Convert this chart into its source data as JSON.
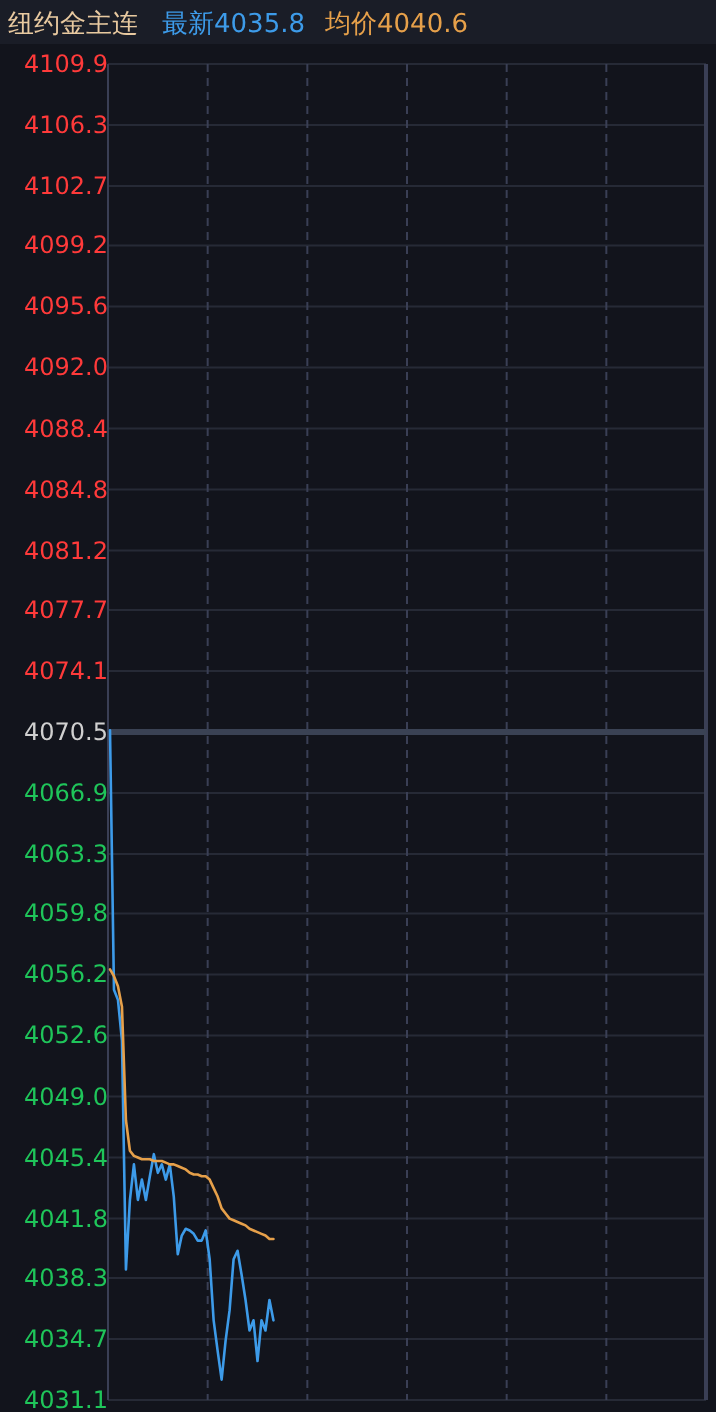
{
  "chart_data": {
    "type": "line",
    "title": "纽约金主连",
    "legend": "top",
    "categories": [
      null,
      null,
      null,
      null,
      null,
      null,
      null,
      null,
      null,
      null,
      null,
      null,
      null,
      null,
      null,
      null,
      null,
      null,
      null,
      null,
      null,
      null,
      null,
      null,
      null,
      null,
      null,
      null,
      null,
      null,
      null,
      null,
      null,
      null,
      null,
      null,
      null,
      null,
      null,
      null,
      null,
      null,
      null,
      null,
      null,
      null,
      null,
      null,
      null,
      null,
      null,
      null,
      null,
      null,
      null,
      null,
      null,
      null,
      null,
      null,
      null,
      null,
      null,
      null,
      null,
      null,
      null,
      null,
      null,
      null,
      null,
      null,
      null,
      null,
      null,
      null,
      null,
      null,
      null,
      null,
      null,
      null,
      null,
      null,
      null,
      null,
      null,
      null,
      null,
      null,
      null,
      null,
      null,
      null,
      null,
      null,
      null,
      null,
      null,
      null,
      null,
      null,
      null,
      null,
      null,
      null,
      null,
      null,
      null,
      null,
      null,
      null,
      null,
      null,
      null,
      null,
      null,
      null,
      null,
      null,
      null,
      null,
      null,
      null,
      null,
      null,
      null,
      null,
      null,
      null,
      null,
      null,
      null,
      null,
      null,
      null,
      null,
      null,
      null,
      null,
      null,
      null,
      null,
      null,
      null,
      null,
      null,
      null,
      null,
      null
    ],
    "series": [
      {
        "name": "最新4035.8",
        "color": "#3d9be9",
        "values": [
          4070.6,
          4055.3,
          4054.7,
          4052.3,
          4038.8,
          4042.9,
          4045.0,
          4042.9,
          4044.1,
          4042.9,
          4044.3,
          4045.6,
          4044.5,
          4045.0,
          4044.1,
          4045.0,
          4043.1,
          4039.7,
          4040.8,
          4041.2,
          4041.1,
          4040.9,
          4040.5,
          4040.5,
          4041.1,
          4039.4,
          4035.8,
          4034.0,
          4032.3,
          4034.6,
          4036.4,
          4039.4,
          4039.9,
          4038.5,
          4037.0,
          4035.2,
          4035.8,
          4033.4,
          4035.8,
          4035.2,
          4037.0,
          4035.8,
          null,
          null,
          null,
          null,
          null,
          null,
          null,
          null,
          null,
          null,
          null,
          null,
          null,
          null,
          null,
          null,
          null,
          null,
          null,
          null,
          null,
          null,
          null,
          null,
          null,
          null,
          null,
          null,
          null,
          null,
          null,
          null,
          null,
          null,
          null,
          null,
          null,
          null,
          null,
          null,
          null,
          null,
          null,
          null,
          null,
          null,
          null,
          null,
          null,
          null,
          null,
          null,
          null,
          null,
          null,
          null,
          null,
          null,
          null,
          null,
          null,
          null,
          null,
          null,
          null,
          null,
          null,
          null,
          null,
          null,
          null,
          null,
          null,
          null,
          null,
          null,
          null,
          null,
          null,
          null,
          null,
          null,
          null,
          null,
          null,
          null,
          null,
          null,
          null,
          null,
          null,
          null,
          null,
          null,
          null,
          null,
          null,
          null,
          null,
          null,
          null,
          null,
          null,
          null,
          null,
          null,
          null,
          null
        ]
      },
      {
        "name": "均价4040.6",
        "color": "#e6a04a",
        "values": [
          4056.5,
          4056.1,
          4055.5,
          4054.3,
          4047.6,
          4045.8,
          4045.5,
          4045.4,
          4045.3,
          4045.3,
          4045.3,
          4045.2,
          4045.2,
          4045.2,
          4045.1,
          4045.0,
          4045.0,
          4044.9,
          4044.8,
          4044.7,
          4044.5,
          4044.4,
          4044.4,
          4044.3,
          4044.3,
          4044.1,
          4043.6,
          4043.1,
          4042.4,
          4042.1,
          4041.8,
          4041.7,
          4041.6,
          4041.5,
          4041.4,
          4041.2,
          4041.1,
          4041.0,
          4040.9,
          4040.8,
          4040.6,
          4040.6,
          null,
          null,
          null,
          null,
          null,
          null,
          null,
          null,
          null,
          null,
          null,
          null,
          null,
          null,
          null,
          null,
          null,
          null,
          null,
          null,
          null,
          null,
          null,
          null,
          null,
          null,
          null,
          null,
          null,
          null,
          null,
          null,
          null,
          null,
          null,
          null,
          null,
          null,
          null,
          null,
          null,
          null,
          null,
          null,
          null,
          null,
          null,
          null,
          null,
          null,
          null,
          null,
          null,
          null,
          null,
          null,
          null,
          null,
          null,
          null,
          null,
          null,
          null,
          null,
          null,
          null,
          null,
          null,
          null,
          null,
          null,
          null,
          null,
          null,
          null,
          null,
          null,
          null,
          null,
          null,
          null,
          null,
          null,
          null,
          null,
          null,
          null,
          null,
          null,
          null,
          null,
          null,
          null,
          null,
          null,
          null,
          null,
          null,
          null,
          null,
          null,
          null,
          null,
          null,
          null,
          null,
          null,
          null
        ]
      }
    ],
    "ylim": [
      4031.1,
      4109.9
    ],
    "yticks": [
      4109.9,
      4106.3,
      4102.7,
      4099.2,
      4095.6,
      {
        "value": 4092.0,
        "label": "4092.0"
      },
      4088.4,
      4084.8,
      4081.2,
      4077.7,
      4074.1,
      4070.5,
      4066.9,
      4063.3,
      4059.8,
      4056.2,
      4052.6,
      {
        "value": 4049.0,
        "label": "4049.0"
      },
      4045.4,
      4041.8,
      4038.3,
      4034.7,
      4031.1
    ],
    "ref_lines": [
      {
        "axis": "y",
        "value": 4070.5,
        "color": "#3a4254"
      }
    ],
    "grid": true,
    "marker": "none",
    "line_style": "solid"
  }
}
